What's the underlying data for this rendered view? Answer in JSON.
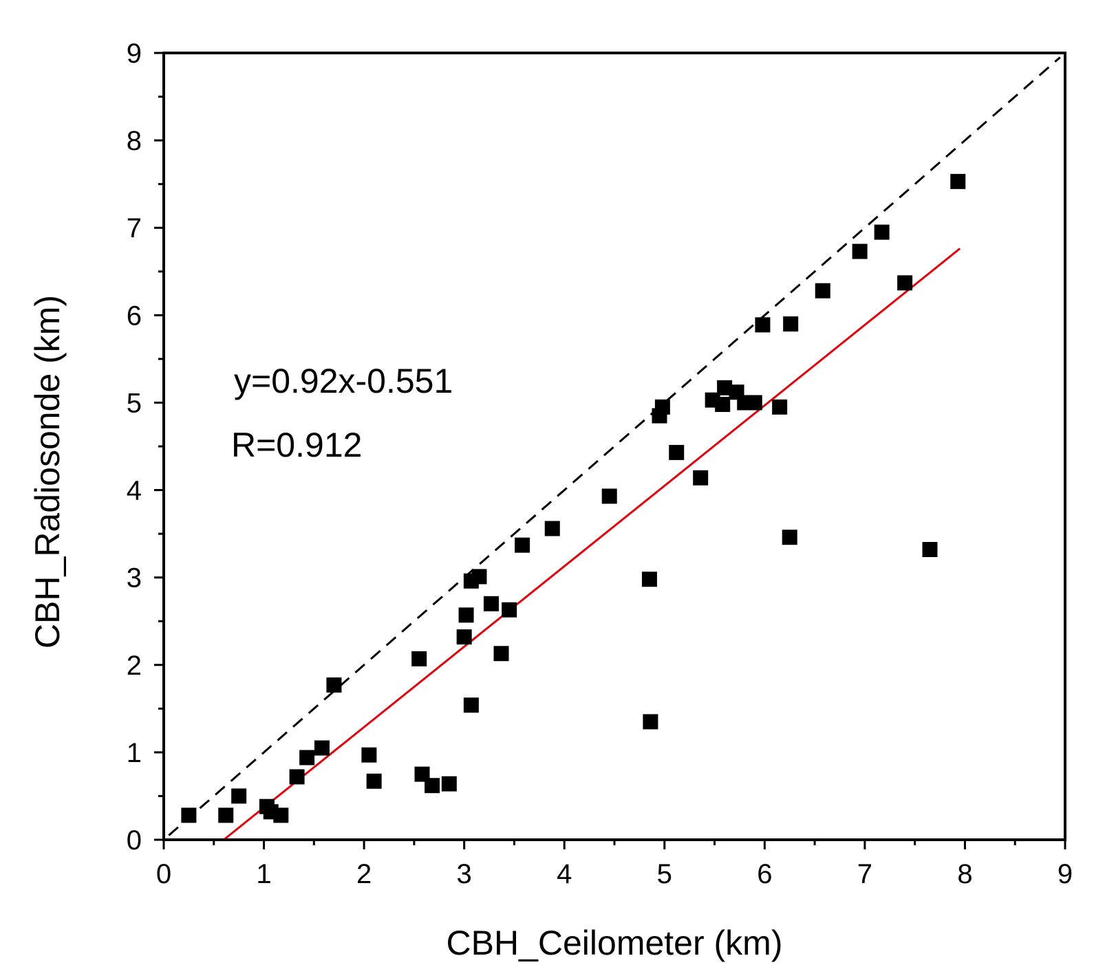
{
  "chart_data": {
    "type": "scatter",
    "title": "",
    "xlabel": "CBH_Ceilometer (km)",
    "ylabel": "CBH_Radiosonde (km)",
    "xlim": [
      0,
      9
    ],
    "ylim": [
      0,
      9
    ],
    "xticks": [
      "0",
      "1",
      "2",
      "3",
      "4",
      "5",
      "6",
      "7",
      "8",
      "9"
    ],
    "yticks": [
      "0",
      "1",
      "2",
      "3",
      "4",
      "5",
      "6",
      "7",
      "8",
      "9"
    ],
    "marker": "square",
    "marker_color": "#000000",
    "points": [
      [
        0.25,
        0.28
      ],
      [
        0.62,
        0.28
      ],
      [
        0.75,
        0.5
      ],
      [
        1.03,
        0.38
      ],
      [
        1.07,
        0.32
      ],
      [
        1.17,
        0.28
      ],
      [
        1.33,
        0.72
      ],
      [
        1.43,
        0.94
      ],
      [
        1.58,
        1.05
      ],
      [
        1.7,
        1.77
      ],
      [
        2.05,
        0.97
      ],
      [
        2.1,
        0.67
      ],
      [
        2.55,
        2.07
      ],
      [
        2.58,
        0.75
      ],
      [
        2.68,
        0.62
      ],
      [
        2.85,
        0.64
      ],
      [
        3.0,
        2.32
      ],
      [
        3.02,
        2.57
      ],
      [
        3.07,
        2.96
      ],
      [
        3.15,
        3.01
      ],
      [
        3.07,
        1.54
      ],
      [
        3.27,
        2.7
      ],
      [
        3.37,
        2.13
      ],
      [
        3.45,
        2.63
      ],
      [
        3.58,
        3.37
      ],
      [
        3.88,
        3.56
      ],
      [
        4.45,
        3.93
      ],
      [
        4.85,
        2.98
      ],
      [
        4.86,
        1.35
      ],
      [
        4.95,
        4.85
      ],
      [
        4.98,
        4.95
      ],
      [
        5.12,
        4.43
      ],
      [
        5.36,
        4.14
      ],
      [
        5.48,
        5.03
      ],
      [
        5.58,
        4.98
      ],
      [
        5.6,
        5.17
      ],
      [
        5.72,
        5.12
      ],
      [
        5.8,
        5.0
      ],
      [
        5.9,
        5.0
      ],
      [
        5.98,
        5.89
      ],
      [
        6.15,
        4.95
      ],
      [
        6.25,
        3.46
      ],
      [
        6.26,
        5.9
      ],
      [
        6.58,
        6.28
      ],
      [
        6.95,
        6.73
      ],
      [
        7.17,
        6.95
      ],
      [
        7.4,
        6.37
      ],
      [
        7.65,
        3.32
      ],
      [
        7.93,
        7.53
      ]
    ],
    "reference_line": {
      "name": "1:1 line",
      "style": "dashed",
      "color": "#000000",
      "x": [
        0.05,
        8.95
      ],
      "y": [
        0.05,
        8.95
      ]
    },
    "fit_line": {
      "name": "linear fit",
      "color": "#e0000e",
      "slope": 0.92,
      "intercept": -0.551,
      "x_range": [
        0.6,
        7.95
      ]
    },
    "annotations": [
      "y=0.92x-0.551",
      "R=0.912"
    ]
  }
}
